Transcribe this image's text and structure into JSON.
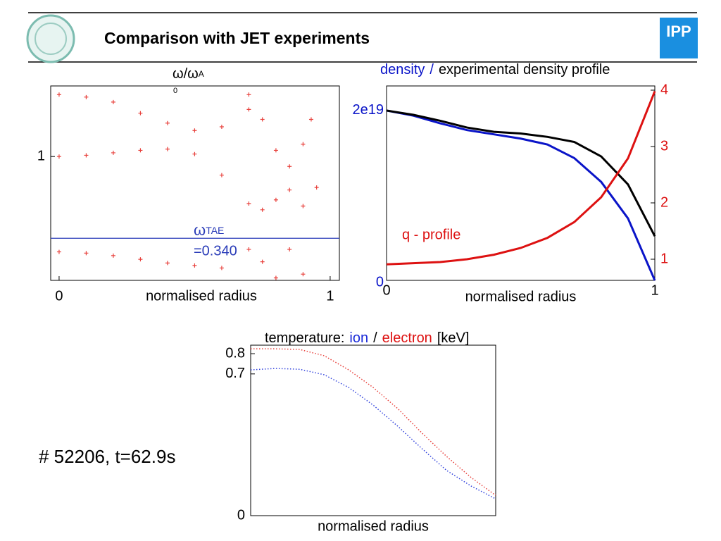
{
  "header": {
    "title": "Comparison with JET experiments",
    "logo_text": "IPP"
  },
  "shot": "# 52206, t=62.9s",
  "chart_data": [
    {
      "type": "scatter",
      "ylabel": "ω/ω",
      "ylabel_sub": "A",
      "ylabel_sub2": "0",
      "xlabel": "normalised radius",
      "xlim": [
        -0.031,
        1.034
      ],
      "ylim": [
        0,
        1.57
      ],
      "xticks": [
        0,
        1
      ],
      "yticks": [
        1
      ],
      "series": [
        {
          "color": "#e8413c",
          "x": [
            0,
            0.1,
            0.2,
            0.3,
            0.4,
            0.5,
            0.6,
            0.7
          ],
          "values": [
            1.5,
            1.48,
            1.44,
            1.35,
            1.27,
            1.21,
            1.24,
            1.38
          ]
        },
        {
          "color": "#e8413c",
          "x": [
            0,
            0.1,
            0.2,
            0.3,
            0.4,
            0.5,
            0.6,
            0.7,
            0.75,
            0.8,
            0.85,
            0.9,
            0.95
          ],
          "values": [
            1.0,
            1.01,
            1.03,
            1.05,
            1.06,
            1.02,
            0.85,
            0.62,
            0.57,
            0.65,
            0.73,
            0.6,
            0.75
          ]
        },
        {
          "color": "#e8413c",
          "x": [
            0.7,
            0.75,
            0.8,
            0.85,
            0.9,
            0.93
          ],
          "values": [
            1.5,
            1.3,
            1.05,
            0.92,
            1.1,
            1.3
          ]
        },
        {
          "color": "#e8413c",
          "x": [
            0,
            0.1,
            0.2,
            0.3,
            0.4,
            0.5,
            0.6,
            0.7,
            0.75,
            0.8,
            0.85,
            0.9
          ],
          "values": [
            0.23,
            0.22,
            0.2,
            0.17,
            0.14,
            0.12,
            0.1,
            0.25,
            0.15,
            0.02,
            0.25,
            0.05
          ]
        }
      ],
      "hline": {
        "value": 0.34,
        "color": "#2a3cb8",
        "label": "ω",
        "label_sub": "TAE",
        "value_label": "=0.340"
      }
    },
    {
      "type": "line",
      "title_parts": [
        {
          "text": "density",
          "color": "#0a14c8"
        },
        {
          "text": "/",
          "color": "#0a14c8"
        },
        {
          "text": "experimental density profile",
          "color": "#000000"
        }
      ],
      "xlabel": "normalised radius",
      "annotation": "q - profile",
      "annotation_color": "#dd1111",
      "x": [
        0,
        0.1,
        0.2,
        0.3,
        0.4,
        0.5,
        0.6,
        0.7,
        0.8,
        0.9,
        1.0
      ],
      "xlim": [
        0,
        1
      ],
      "xticks": [
        0,
        1
      ],
      "ylim": [
        0,
        2.29e+19
      ],
      "yticks": [
        0,
        {
          "value": 2e+19,
          "label": "2e19"
        }
      ],
      "ytick_color": "#0a14c8",
      "y2lim": [
        0.625,
        4.075
      ],
      "y2ticks": [
        1,
        2,
        3,
        4
      ],
      "y2tick_color": "#dd1111",
      "series": [
        {
          "color": "#0a14c8",
          "values": [
            2e+19,
            1.94e+19,
            1.85e+19,
            1.77e+19,
            1.72e+19,
            1.67e+19,
            1.6e+19,
            1.44e+19,
            1.16e+19,
            7.3e+18,
            0
          ]
        },
        {
          "color": "#000000",
          "values": [
            2e+19,
            1.95e+19,
            1.88e+19,
            1.8e+19,
            1.75e+19,
            1.73e+19,
            1.69e+19,
            1.63e+19,
            1.46e+19,
            1.13e+19,
            5.2e+18
          ]
        },
        {
          "color": "#dd1111",
          "axis": "y2",
          "values": [
            0.91,
            0.93,
            0.95,
            1.0,
            1.08,
            1.2,
            1.38,
            1.66,
            2.1,
            2.79,
            3.98
          ]
        }
      ]
    },
    {
      "type": "line",
      "dotted": true,
      "title_parts": [
        {
          "text": "temperature:",
          "color": "#000000"
        },
        {
          "text": "ion",
          "color": "#1a2ad8"
        },
        {
          "text": "/",
          "color": "#000000"
        },
        {
          "text": "electron",
          "color": "#dd1111"
        },
        {
          "text": "[keV]",
          "color": "#000000"
        }
      ],
      "xlabel": "normalised radius",
      "x": [
        0,
        0.1,
        0.2,
        0.3,
        0.4,
        0.5,
        0.6,
        0.7,
        0.8,
        0.9,
        1.0
      ],
      "xlim": [
        0,
        1
      ],
      "ylim": [
        0,
        0.842
      ],
      "yticks": [
        0,
        0.7,
        0.8
      ],
      "ytick_color": "#000000",
      "series": [
        {
          "color": "#e8413c",
          "values": [
            0.824,
            0.824,
            0.821,
            0.79,
            0.72,
            0.633,
            0.529,
            0.407,
            0.292,
            0.188,
            0.1
          ]
        },
        {
          "color": "#3344dd",
          "values": [
            0.72,
            0.727,
            0.723,
            0.696,
            0.633,
            0.546,
            0.442,
            0.33,
            0.223,
            0.146,
            0.083
          ]
        }
      ]
    }
  ]
}
